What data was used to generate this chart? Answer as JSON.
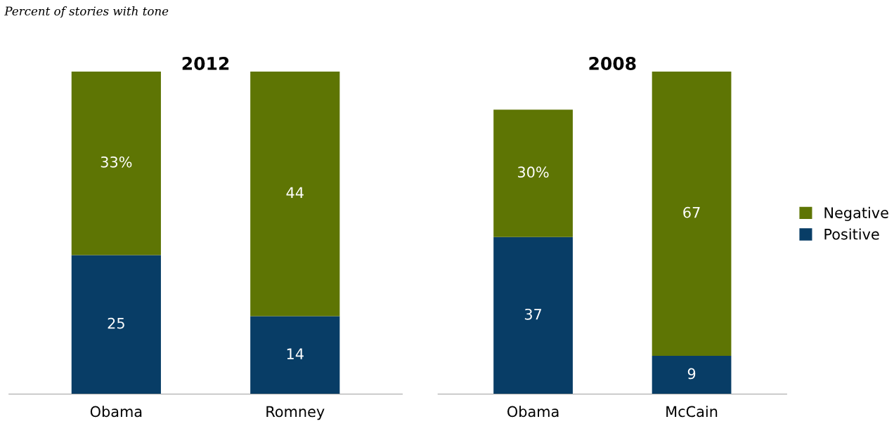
{
  "chart_data": [
    {
      "type": "bar",
      "title": "2012",
      "subtitle": "Percent of stories with tone",
      "stacked": true,
      "legend": false,
      "categories": [
        "Obama",
        "Romney"
      ],
      "series": [
        {
          "color": "#083d66",
          "values": [
            25,
            14
          ],
          "value_labels": [
            "25",
            "14"
          ]
        },
        {
          "color": "#5e7504",
          "values": [
            33,
            44
          ],
          "value_labels": [
            "33%",
            "44"
          ]
        }
      ]
    },
    {
      "type": "bar",
      "title": "2008",
      "stacked": true,
      "legend": "right",
      "categories": [
        "Obama",
        "McCain"
      ],
      "series": [
        {
          "name": "Positive",
          "color": "#083d66",
          "values": [
            37,
            9
          ],
          "value_labels": [
            "37",
            "9"
          ]
        },
        {
          "name": "Negative",
          "color": "#5e7504",
          "values": [
            30,
            67
          ],
          "value_labels": [
            "30%",
            "67"
          ]
        }
      ]
    }
  ]
}
